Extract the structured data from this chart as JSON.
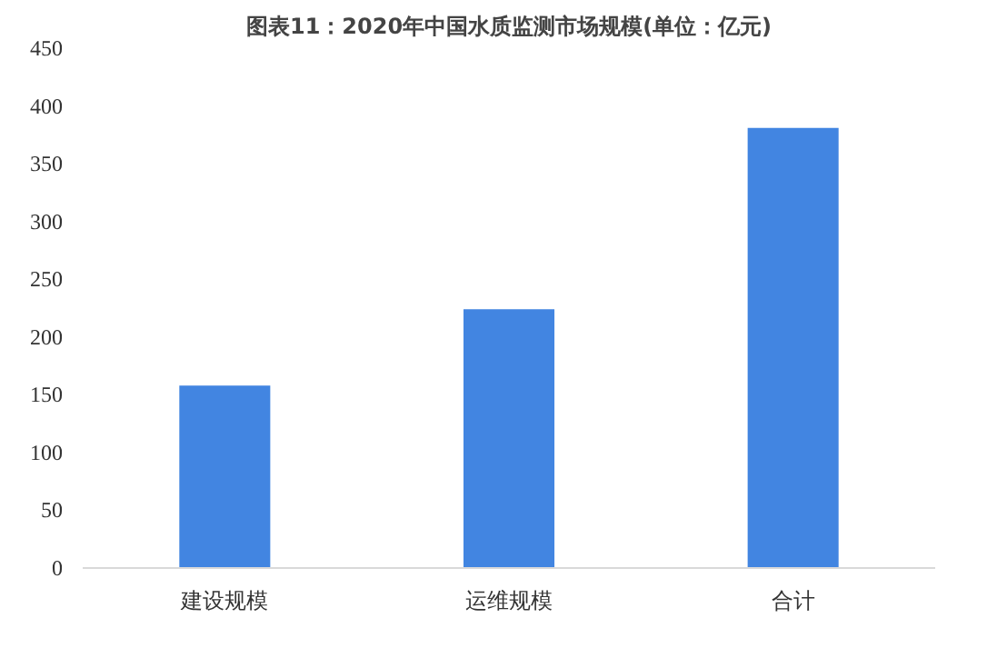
{
  "chart_data": {
    "type": "bar",
    "title": "图表11：2020年中国水质监测市场规模(单位：亿元)",
    "categories": [
      "建设规模",
      "运维规模",
      "合计"
    ],
    "values": [
      158,
      224,
      381
    ],
    "color": "#4285e1",
    "ylim": [
      0,
      450
    ],
    "yticks": [
      0,
      50,
      100,
      150,
      200,
      250,
      300,
      350,
      400,
      450
    ],
    "grid": false
  }
}
